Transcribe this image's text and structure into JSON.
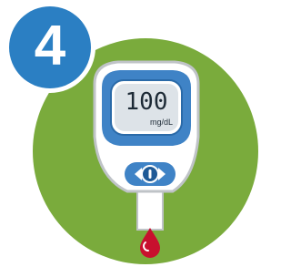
{
  "badge": "4",
  "display": {
    "reading": "100",
    "unit": "mg/dL"
  }
}
